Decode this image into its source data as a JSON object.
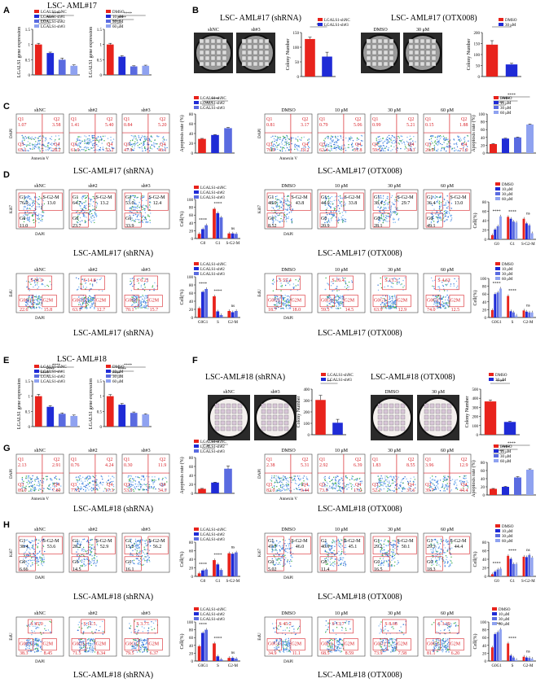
{
  "colors": {
    "red": "#e8231c",
    "blue": "#1f2bd6",
    "mid": "#5a6be0",
    "light": "#8fa2f0",
    "gate": "#d9232a"
  },
  "panels": [
    {
      "letter": "A",
      "title": "LSC- AML#17"
    },
    {
      "letter": "B",
      "title": "LSC- AML#17 (shRNA)",
      "title2": "LSC- AML#17 (OTX008)"
    },
    {
      "letter": "C",
      "title": "LSC-AML#17 (shRNA)",
      "title2": "LSC-AML#17 (OTX008)"
    },
    {
      "letter": "D",
      "title": "LSC-AML#17 (shRNA)",
      "title2": "LSC-AML#17 (OTX008)"
    },
    {
      "letter": "E",
      "title": "LSC- AML#18"
    },
    {
      "letter": "F",
      "title": "LSC-AML#18 (shRNA)",
      "title2": "LSC-AML#18 (OTX008)"
    },
    {
      "letter": "G",
      "title": "LSC-AML#18 (shRNA)",
      "title2": "LSC-AML#18 (OTX008)"
    },
    {
      "letter": "H",
      "title": "LSC-AML#18 (shRNA)",
      "title2": "LSC-AML#18 (OTX008)"
    }
  ],
  "labels": {
    "lgals1_expr": "LGALS1 gene expression",
    "colony": "Colony Number",
    "apoptosis": "Apoptosis rate (%)",
    "cell_pct": "Cell(%)",
    "dapi": "DAPI",
    "annexin": "Annexin V",
    "ki67": "Ki67",
    "edu": "EdU",
    "shNC": "shNC",
    "sh2": "sh#2",
    "sh3": "sh#3",
    "dmso": "DMSO",
    "c10": "10 μM",
    "c30": "30 μM",
    "c60": "60 μM",
    "sig4": "****",
    "sig3": "***",
    "sig2": "**",
    "sig1": "*",
    "ns": "ns"
  },
  "legends": {
    "sh3": [
      "LGALS1-shNC",
      "LGALS1-sh#1",
      "LGALS1-sh#2",
      "LGALS1-sh#3"
    ],
    "sh2": [
      "LGALS1-shNC",
      "LGALS1-sh#3"
    ],
    "shflow": [
      "LGALS1-shNC",
      "LGALS1-sh#2",
      "LGALS1-sh#3"
    ],
    "otx4": [
      "DMSO",
      "10 μM",
      "30 μM",
      "60 μM"
    ],
    "otx2": [
      "DMSO",
      "30 μM"
    ]
  },
  "flow_values": {
    "C_sh": [
      [
        "1.07",
        "3.58",
        "65.1",
        "28.2"
      ],
      [
        "1.41",
        "5.40",
        "61.0",
        "32.2"
      ],
      [
        "0.84",
        "5.20",
        "47.9",
        "46.1"
      ]
    ],
    "C_otx": [
      [
        "0.81",
        "3.17",
        "76.9",
        "19.2"
      ],
      [
        "0.79",
        "5.06",
        "62.4",
        "31.8"
      ],
      [
        "0.99",
        "5.21",
        "59.5",
        "34.3"
      ],
      [
        "0.15",
        "1.88",
        "26.9",
        "71.0"
      ]
    ],
    "D1_sh": [
      [
        "76.0",
        "13.0",
        "11.0"
      ],
      [
        "64.7",
        "13.2",
        "23.7"
      ],
      [
        "53.0",
        "12.4",
        "33.9"
      ]
    ],
    "D1_otx": [
      [
        "48.0",
        "43.8",
        "8.52"
      ],
      [
        "44.0",
        "33.8",
        "20.9"
      ],
      [
        "38.4",
        "29.7",
        "28.1"
      ],
      [
        "36.4",
        "13.0",
        "49.1"
      ]
    ],
    "D2_sh": [
      [
        "51.9",
        "22.6",
        "15.8"
      ],
      [
        "14.8",
        "63.1",
        "12.7"
      ],
      [
        "6.21",
        "70.1",
        "15.7"
      ]
    ],
    "D2_otx": [
      [
        "55.4",
        "18.7",
        "18.0"
      ],
      [
        "16.4",
        "59.5",
        "14.5"
      ],
      [
        "13.3",
        "63.9",
        "12.9"
      ],
      [
        "4.62",
        "74.0",
        "12.5"
      ]
    ],
    "G_sh": [
      [
        "2.13",
        "2.91",
        "89.0",
        "7.80"
      ],
      [
        "0.76",
        "4.24",
        "77.5",
        "17.3"
      ],
      [
        "0.30",
        "11.9",
        "53.5",
        "34.3"
      ]
    ],
    "G_otx": [
      [
        "2.38",
        "5.31",
        "82.0",
        "9.44"
      ],
      [
        "2.92",
        "6.39",
        "73.5",
        "17.2"
      ],
      [
        "1.83",
        "8.55",
        "52.1",
        "37.6"
      ],
      [
        "3.96",
        "12.9",
        "39.7",
        "44.4"
      ]
    ],
    "H1_sh": [
      [
        "38.4",
        "53.6",
        "6.66"
      ],
      [
        "28.2",
        "52.9",
        "14.5"
      ],
      [
        "15.3",
        "56.2",
        "16.1"
      ]
    ],
    "H1_otx": [
      [
        "47.7",
        "46.0",
        "5.02"
      ],
      [
        "40.9",
        "45.1",
        "11.4"
      ],
      [
        "29.2",
        "50.1",
        "16.5"
      ],
      [
        "29.3",
        "44.4",
        "18.3"
      ]
    ],
    "H2_sh": [
      [
        "45.0",
        "38.3",
        "8.45"
      ],
      [
        "11.5",
        "71.5",
        "8.34"
      ],
      [
        "3.77",
        "79.5",
        "6.37"
      ]
    ],
    "H2_otx": [
      [
        "45.2",
        "34.9",
        "11.1"
      ],
      [
        "13.7",
        "68.5",
        "8.59"
      ],
      [
        "8.68",
        "73.9",
        "7.58"
      ],
      [
        "3.39",
        "81.1",
        "6.20"
      ]
    ]
  },
  "gates": {
    "q1": "Q1",
    "q2": "Q2",
    "q3": "Q3",
    "q4": "Q4",
    "g0": "G0",
    "g1": "G1",
    "sg2m": "S-G2-M",
    "s": "S",
    "g0g1": "G0G1",
    "g2m": "G2M"
  },
  "chart_data": [
    {
      "id": "A1",
      "type": "bar",
      "ylabel": "LGALS1 gene expression",
      "ylim": [
        0,
        1.5
      ],
      "ticks": [
        "0",
        "0.5",
        "1",
        "1.5"
      ],
      "categories": [
        "shNC",
        "sh#1",
        "sh#2",
        "sh#3"
      ],
      "values": [
        1.0,
        0.72,
        0.5,
        0.3
      ],
      "errors": [
        0.04,
        0.03,
        0.05,
        0.03
      ]
    },
    {
      "id": "A2",
      "type": "bar",
      "ylabel": "LGALS1 gene expression",
      "ylim": [
        0,
        1.5
      ],
      "ticks": [
        "0",
        "0.5",
        "1",
        "1.5"
      ],
      "categories": [
        "DMSO",
        "10 μM",
        "30 μM",
        "60 μM"
      ],
      "values": [
        1.0,
        0.6,
        0.28,
        0.3
      ],
      "errors": [
        0.04,
        0.03,
        0.02,
        0.02
      ]
    },
    {
      "id": "B1",
      "type": "bar",
      "ylabel": "Colony Number",
      "ylim": [
        0,
        150
      ],
      "ticks": [
        "0",
        "50",
        "100",
        "150"
      ],
      "categories": [
        "shNC",
        "sh#3"
      ],
      "values": [
        128,
        68
      ],
      "errors": [
        6,
        15
      ]
    },
    {
      "id": "B2",
      "type": "bar",
      "ylabel": "Colony Number",
      "ylim": [
        0,
        200
      ],
      "ticks": [
        "0",
        "50",
        "100",
        "150",
        "200"
      ],
      "categories": [
        "DMSO",
        "30 μM"
      ],
      "values": [
        145,
        55
      ],
      "errors": [
        18,
        5
      ]
    },
    {
      "id": "C1",
      "type": "bar",
      "ylabel": "Apoptosis rate (%)",
      "ylim": [
        0,
        80
      ],
      "ticks": [
        "0",
        "20",
        "40",
        "60",
        "80"
      ],
      "categories": [
        "shNC",
        "sh#2",
        "sh#3"
      ],
      "values": [
        29,
        37,
        51
      ],
      "errors": [
        1,
        1,
        1.5
      ]
    },
    {
      "id": "C2",
      "type": "bar",
      "ylabel": "Apoptosis rate (%)",
      "ylim": [
        0,
        100
      ],
      "ticks": [
        "0",
        "20",
        "40",
        "60",
        "80",
        "100"
      ],
      "categories": [
        "DMSO",
        "10 μM",
        "30 μM",
        "60 μM"
      ],
      "values": [
        23,
        37,
        40,
        73
      ],
      "errors": [
        1,
        1,
        1,
        1.5
      ]
    },
    {
      "id": "D1a",
      "type": "bar",
      "ylabel": "Cell(%)",
      "ylim": [
        0,
        100
      ],
      "ticks": [
        "0",
        "20",
        "40",
        "60",
        "80",
        "100"
      ],
      "categories": [
        "G0",
        "G1",
        "S-G2-M"
      ],
      "series": [
        {
          "name": "shNC",
          "values": [
            12,
            76,
            13
          ]
        },
        {
          "name": "sh#2",
          "values": [
            24,
            65,
            13
          ]
        },
        {
          "name": "sh#3",
          "values": [
            34,
            54,
            12
          ]
        }
      ]
    },
    {
      "id": "D1b",
      "type": "bar",
      "ylabel": "Cell(%)",
      "ylim": [
        0,
        80
      ],
      "ticks": [
        "0",
        "20",
        "40",
        "60",
        "80"
      ],
      "categories": [
        "G0",
        "G1",
        "S-G2-M"
      ],
      "series": [
        {
          "name": "DMSO",
          "values": [
            9,
            48,
            44
          ]
        },
        {
          "name": "10 μM",
          "values": [
            21,
            44,
            34
          ]
        },
        {
          "name": "30 μM",
          "values": [
            28,
            38,
            30
          ]
        },
        {
          "name": "60 μM",
          "values": [
            49,
            36,
            13
          ]
        }
      ]
    },
    {
      "id": "D2a",
      "type": "bar",
      "ylabel": "Cell(%)",
      "ylim": [
        0,
        100
      ],
      "ticks": [
        "0",
        "20",
        "40",
        "60",
        "80",
        "100"
      ],
      "categories": [
        "G0G1",
        "S",
        "G2-M"
      ],
      "series": [
        {
          "name": "shNC",
          "values": [
            23,
            52,
            16
          ]
        },
        {
          "name": "sh#2",
          "values": [
            63,
            15,
            13
          ]
        },
        {
          "name": "sh#3",
          "values": [
            70,
            6,
            16
          ]
        }
      ]
    },
    {
      "id": "D2b",
      "type": "bar",
      "ylabel": "Cell(%)",
      "ylim": [
        0,
        100
      ],
      "ticks": [
        "0",
        "20",
        "40",
        "60",
        "80",
        "100"
      ],
      "categories": [
        "G0G1",
        "S",
        "G2-M"
      ],
      "series": [
        {
          "name": "DMSO",
          "values": [
            19,
            55,
            18
          ]
        },
        {
          "name": "10 μM",
          "values": [
            60,
            16,
            15
          ]
        },
        {
          "name": "30 μM",
          "values": [
            64,
            13,
            13
          ]
        },
        {
          "name": "60 μM",
          "values": [
            74,
            5,
            13
          ]
        }
      ]
    },
    {
      "id": "E1",
      "type": "bar",
      "ylabel": "LGALS1 gene expression",
      "ylim": [
        0,
        1.5
      ],
      "ticks": [
        "0",
        "0.5",
        "1",
        "1.5"
      ],
      "categories": [
        "shNC",
        "sh#1",
        "sh#2",
        "sh#3"
      ],
      "values": [
        1.0,
        0.65,
        0.42,
        0.35
      ],
      "errors": [
        0.06,
        0.04,
        0.03,
        0.03
      ]
    },
    {
      "id": "E2",
      "type": "bar",
      "ylabel": "LGALS1 gene expression",
      "ylim": [
        0,
        1.5
      ],
      "ticks": [
        "0",
        "0.5",
        "1",
        "1.5"
      ],
      "categories": [
        "DMSO",
        "10 μM",
        "30 μM",
        "60 μM"
      ],
      "values": [
        1.0,
        0.72,
        0.45,
        0.4
      ],
      "errors": [
        0.05,
        0.04,
        0.03,
        0.02
      ]
    },
    {
      "id": "F1",
      "type": "bar",
      "ylabel": "Colony Number",
      "ylim": [
        0,
        400
      ],
      "ticks": [
        "0",
        "100",
        "200",
        "300",
        "400"
      ],
      "categories": [
        "shNC",
        "sh#3"
      ],
      "values": [
        305,
        105
      ],
      "errors": [
        40,
        30
      ]
    },
    {
      "id": "F2",
      "type": "bar",
      "ylabel": "Colony Number",
      "ylim": [
        0,
        500
      ],
      "ticks": [
        "0",
        "100",
        "200",
        "300",
        "400",
        "500"
      ],
      "categories": [
        "DMSO",
        "30 μM"
      ],
      "values": [
        365,
        140
      ],
      "errors": [
        15,
        8
      ]
    },
    {
      "id": "G1",
      "type": "bar",
      "ylabel": "Apoptosis rate (%)",
      "ylim": [
        0,
        80
      ],
      "ticks": [
        "0",
        "20",
        "40",
        "60",
        "80"
      ],
      "categories": [
        "shNC",
        "sh#2",
        "sh#3"
      ],
      "values": [
        10,
        24,
        55
      ],
      "errors": [
        1,
        1,
        6
      ]
    },
    {
      "id": "G2",
      "type": "bar",
      "ylabel": "Apoptosis rate (%)",
      "ylim": [
        0,
        80
      ],
      "ticks": [
        "0",
        "20",
        "40",
        "60",
        "80"
      ],
      "categories": [
        "DMSO",
        "10 μM",
        "30 μM",
        "60 μM"
      ],
      "values": [
        15,
        20,
        43,
        62
      ],
      "errors": [
        1,
        1,
        2,
        2
      ]
    },
    {
      "id": "H1a",
      "type": "bar",
      "ylabel": "Cell(%)",
      "ylim": [
        0,
        80
      ],
      "ticks": [
        "0",
        "20",
        "40",
        "60",
        "80"
      ],
      "categories": [
        "G0",
        "G1",
        "S-G2-M"
      ],
      "series": [
        {
          "name": "shNC",
          "values": [
            7,
            38,
            54
          ]
        },
        {
          "name": "sh#2",
          "values": [
            14,
            28,
            53
          ]
        },
        {
          "name": "sh#3",
          "values": [
            16,
            15,
            56
          ]
        }
      ]
    },
    {
      "id": "H1b",
      "type": "bar",
      "ylabel": "Cell(%)",
      "ylim": [
        0,
        80
      ],
      "ticks": [
        "0",
        "20",
        "40",
        "60",
        "80"
      ],
      "categories": [
        "G0",
        "G1",
        "S-G2-M"
      ],
      "series": [
        {
          "name": "DMSO",
          "values": [
            5,
            48,
            46
          ]
        },
        {
          "name": "10 μM",
          "values": [
            11,
            41,
            45
          ]
        },
        {
          "name": "30 μM",
          "values": [
            16,
            29,
            50
          ]
        },
        {
          "name": "60 μM",
          "values": [
            18,
            29,
            44
          ]
        }
      ]
    },
    {
      "id": "H2a",
      "type": "bar",
      "ylabel": "Cell(%)",
      "ylim": [
        0,
        100
      ],
      "ticks": [
        "0",
        "20",
        "40",
        "60",
        "80",
        "100"
      ],
      "categories": [
        "G0G1",
        "S",
        "G2-M"
      ],
      "series": [
        {
          "name": "shNC",
          "values": [
            38,
            45,
            8
          ]
        },
        {
          "name": "sh#2",
          "values": [
            72,
            12,
            8
          ]
        },
        {
          "name": "sh#3",
          "values": [
            80,
            4,
            6
          ]
        }
      ]
    },
    {
      "id": "H2b",
      "type": "bar",
      "ylabel": "Cell(%)",
      "ylim": [
        0,
        100
      ],
      "ticks": [
        "0",
        "20",
        "40",
        "60",
        "80",
        "100"
      ],
      "categories": [
        "G0G1",
        "S",
        "G2-M"
      ],
      "series": [
        {
          "name": "DMSO",
          "values": [
            35,
            45,
            11
          ]
        },
        {
          "name": "10 μM",
          "values": [
            69,
            14,
            9
          ]
        },
        {
          "name": "30 μM",
          "values": [
            74,
            9,
            8
          ]
        },
        {
          "name": "60 μM",
          "values": [
            81,
            3,
            6
          ]
        }
      ]
    }
  ]
}
